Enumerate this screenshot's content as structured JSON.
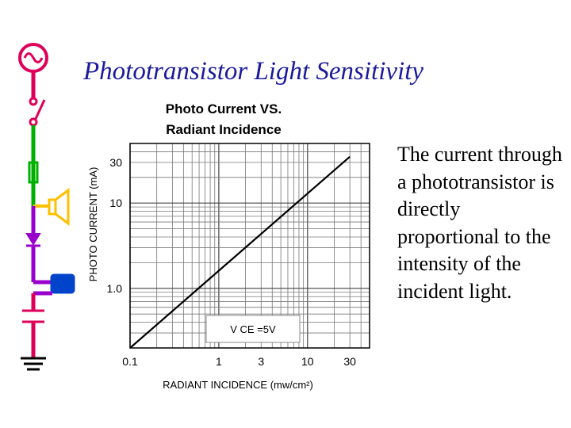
{
  "slide": {
    "title": "Phototransistor Light Sensitivity",
    "body": "The current through a phototransistor is directly proportional to the intensity of the incident light."
  },
  "circuit": {
    "colors": {
      "top": "#e0005a",
      "middle": "#00b000",
      "lower": "#ffc000",
      "diode": "#9900cc",
      "bottom": "#e0005a"
    },
    "icons": [
      "ac-source-icon",
      "switch-icon",
      "resistor-icon",
      "speaker-icon",
      "diode-icon",
      "transistor-icon",
      "capacitor-icon",
      "ground-icon"
    ]
  },
  "chart_data": {
    "type": "line",
    "title": "Photo Current VS. Radiant Incidence",
    "title_lines": [
      "Photo Current VS.",
      "Radiant Incidence"
    ],
    "xlabel": "RADIANT INCIDENCE (mw/cm²)",
    "ylabel": "PHOTO CURRENT (mA)",
    "x_scale": "log",
    "y_scale": "log",
    "xlim": [
      0.1,
      50
    ],
    "ylim": [
      0.2,
      50
    ],
    "x_ticks": [
      0.1,
      1,
      3,
      10,
      30
    ],
    "x_tick_labels": [
      "0.1",
      "1",
      "3",
      "10",
      "30"
    ],
    "y_ticks": [
      1,
      10,
      30
    ],
    "y_tick_labels": [
      "1.0",
      "10",
      "30"
    ],
    "grid": true,
    "annotation": "V CE =5V",
    "series": [
      {
        "x": [
          0.1,
          30
        ],
        "y": [
          0.2,
          35
        ]
      }
    ]
  }
}
